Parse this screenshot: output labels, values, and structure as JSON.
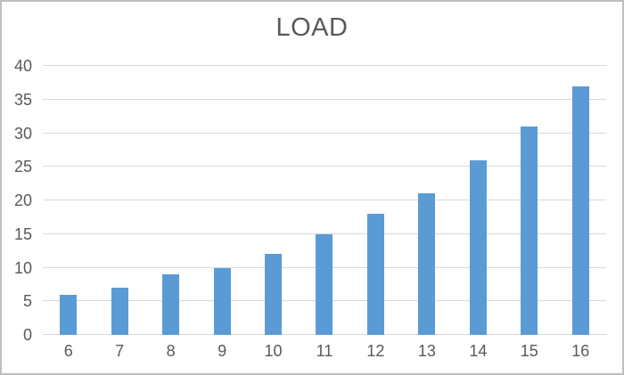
{
  "chart_data": {
    "type": "bar",
    "title": "LOAD",
    "categories": [
      "6",
      "7",
      "8",
      "9",
      "10",
      "11",
      "12",
      "13",
      "14",
      "15",
      "16"
    ],
    "values": [
      6,
      7,
      9,
      10,
      12,
      15,
      18,
      21,
      26,
      31,
      37
    ],
    "xlabel": "",
    "ylabel": "",
    "ylim": [
      0,
      40
    ],
    "ytick_step": 5,
    "yticks": [
      0,
      5,
      10,
      15,
      20,
      25,
      30,
      35,
      40
    ],
    "grid": true,
    "legend": false,
    "colors": {
      "bar": "#5b9bd5",
      "gridline": "#d9d9d9",
      "tick_label": "#595959",
      "title": "#595959",
      "frame_border": "#bfbfbf",
      "background": "#ffffff"
    }
  }
}
